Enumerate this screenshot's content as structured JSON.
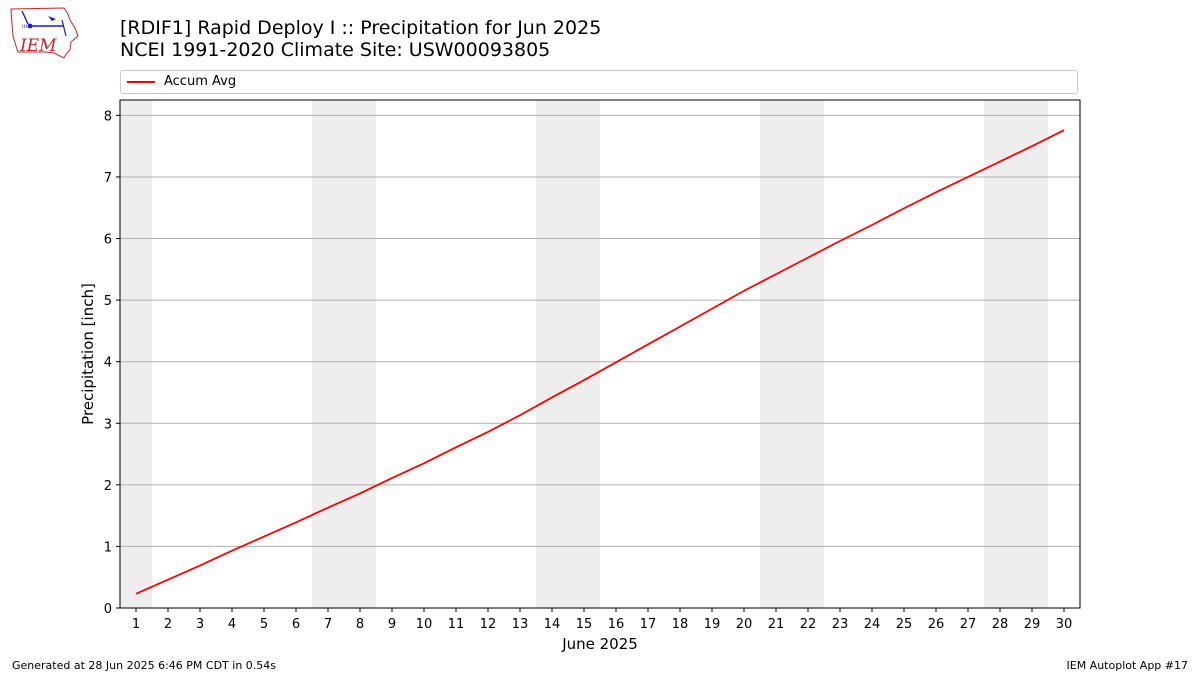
{
  "header": {
    "title_line1": "[RDIF1] Rapid Deploy I :: Precipitation for Jun 2025",
    "title_line2": "NCEI 1991-2020 Climate Site: USW00093805",
    "logo_text": "IEM"
  },
  "footer": {
    "left": "Generated at 28 Jun 2025 6:46 PM CDT in 0.54s",
    "right": "IEM Autoplot App #17"
  },
  "colors": {
    "series": "#ff0000",
    "weekend_band": "#eeeeee",
    "grid": "#b0b0b0",
    "logo_red": "#cc2222",
    "logo_blue": "#1a1acc"
  },
  "chart_data": {
    "type": "line",
    "xlabel": "June 2025",
    "ylabel": "Precipitation [inch]",
    "xlim": [
      0.5,
      30.5
    ],
    "ylim": [
      0,
      8.25
    ],
    "x_ticks": [
      1,
      2,
      3,
      4,
      5,
      6,
      7,
      8,
      9,
      10,
      11,
      12,
      13,
      14,
      15,
      16,
      17,
      18,
      19,
      20,
      21,
      22,
      23,
      24,
      25,
      26,
      27,
      28,
      29,
      30
    ],
    "y_ticks": [
      0,
      1,
      2,
      3,
      4,
      5,
      6,
      7,
      8
    ],
    "grid": "horizontal",
    "legend_placement": "top",
    "weekend_days": [
      1,
      7,
      8,
      14,
      15,
      21,
      22,
      28,
      29
    ],
    "series": [
      {
        "name": "Accum Avg",
        "x": [
          1,
          2,
          3,
          4,
          5,
          6,
          7,
          8,
          9,
          10,
          11,
          12,
          13,
          14,
          15,
          16,
          17,
          18,
          19,
          20,
          21,
          22,
          23,
          24,
          25,
          26,
          27,
          28,
          29,
          30
        ],
        "values": [
          0.23,
          0.46,
          0.69,
          0.93,
          1.16,
          1.39,
          1.63,
          1.86,
          2.11,
          2.35,
          2.61,
          2.86,
          3.13,
          3.42,
          3.7,
          3.99,
          4.28,
          4.57,
          4.86,
          5.15,
          5.42,
          5.69,
          5.96,
          6.22,
          6.49,
          6.75,
          7.0,
          7.25,
          7.5,
          7.76
        ]
      }
    ]
  }
}
